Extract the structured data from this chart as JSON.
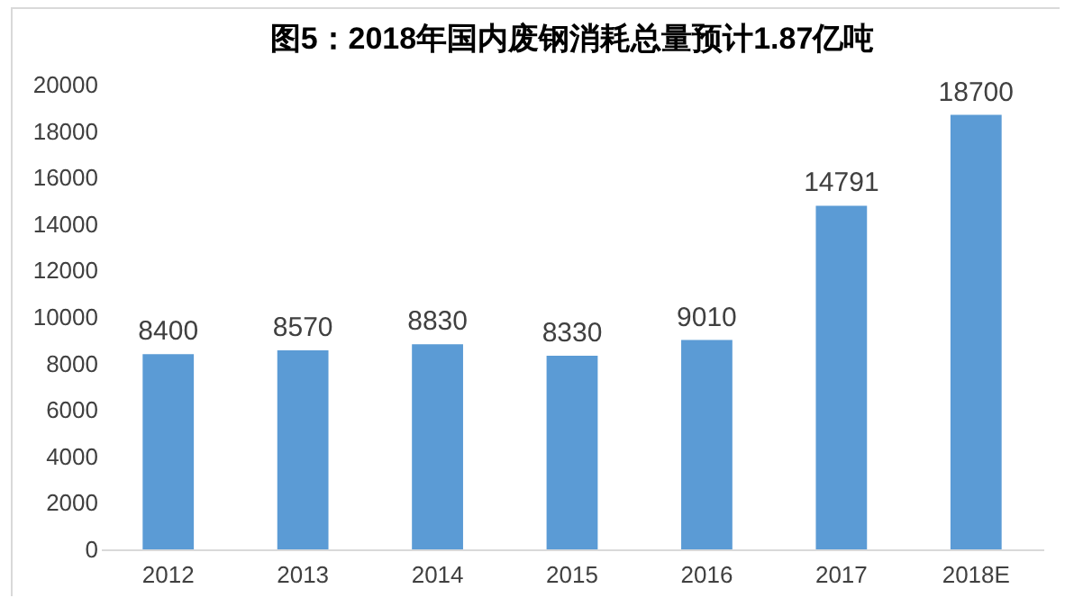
{
  "chart_data": {
    "type": "bar",
    "title": "图5：2018年国内废钢消耗总量预计1.87亿吨",
    "categories": [
      "2012",
      "2013",
      "2014",
      "2015",
      "2016",
      "2017",
      "2018E"
    ],
    "values": [
      8400,
      8570,
      8830,
      8330,
      9010,
      14791,
      18700
    ],
    "color": "#5b9bd5",
    "ylim": [
      0,
      20000
    ],
    "yticks": [
      0,
      2000,
      4000,
      6000,
      8000,
      10000,
      12000,
      14000,
      16000,
      18000,
      20000
    ],
    "grid": false,
    "data_labels": true
  }
}
